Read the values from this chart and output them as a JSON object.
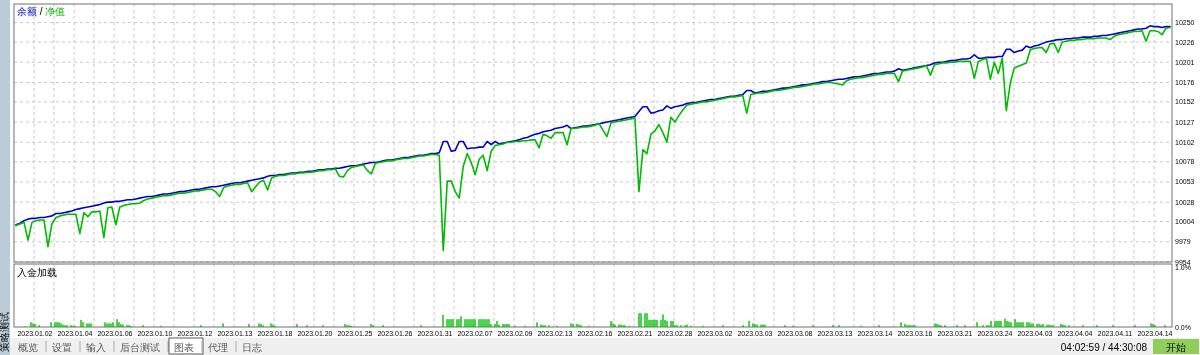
{
  "chart_data": [
    {
      "type": "line",
      "legend": "top left",
      "grid": true,
      "categories": [
        null,
        null,
        null,
        null,
        null,
        null,
        null,
        null,
        null,
        null,
        null,
        null,
        null,
        null,
        null,
        null,
        null,
        null,
        null,
        null,
        null,
        null,
        null,
        null,
        null,
        null,
        null,
        null,
        null,
        null,
        null,
        null,
        null,
        null,
        null,
        null,
        null,
        null,
        null,
        null,
        null,
        null,
        null,
        null,
        null,
        null,
        null,
        null,
        null,
        null,
        null,
        null,
        null,
        null,
        null,
        null,
        null,
        null,
        null,
        null,
        null,
        null,
        null,
        null,
        null,
        null,
        null,
        null,
        null,
        null,
        null,
        null,
        null,
        null,
        null,
        null,
        null,
        null,
        null,
        null,
        null,
        null,
        null,
        null,
        null,
        null,
        null,
        null,
        null,
        null,
        null,
        null,
        null,
        null,
        null,
        null,
        null,
        null,
        null,
        null,
        null,
        null,
        null,
        null,
        null,
        null,
        null,
        null,
        null,
        null,
        null,
        null,
        null,
        null,
        null,
        null,
        null,
        null,
        null,
        null,
        null,
        null,
        null,
        null,
        null,
        null,
        null,
        null,
        null,
        null,
        null,
        null,
        null,
        null,
        null,
        null,
        null,
        null,
        null,
        null,
        null,
        null,
        null,
        null,
        null,
        null,
        null,
        null,
        null,
        null,
        null,
        null,
        null,
        null,
        null,
        null,
        null,
        null,
        null,
        null,
        null,
        null,
        null,
        null,
        null,
        null,
        null,
        null,
        null,
        null,
        null,
        null,
        null,
        null,
        null,
        null,
        null,
        null,
        null,
        null,
        null,
        null,
        null,
        null,
        null,
        null,
        null,
        null,
        null,
        null,
        null,
        null,
        null,
        null,
        null,
        null,
        null,
        null,
        null,
        null,
        null,
        null,
        null,
        null,
        null,
        null,
        null,
        null,
        null,
        null,
        null,
        null,
        null,
        null,
        null,
        null,
        null,
        null,
        null,
        null,
        null,
        null,
        null,
        null,
        null,
        null,
        null,
        null,
        null,
        null,
        null,
        null,
        null,
        null,
        null,
        null,
        null,
        null,
        null,
        null,
        null,
        null,
        null,
        null,
        null,
        null,
        null,
        null,
        null,
        null,
        null,
        null,
        null,
        null,
        null,
        null,
        null,
        null,
        null,
        null,
        null,
        null,
        null,
        null,
        null,
        null,
        null,
        null,
        null,
        null,
        null,
        null,
        null,
        null,
        null,
        null,
        null,
        null,
        null,
        null,
        null,
        null,
        null,
        null,
        null,
        null,
        null,
        null,
        null,
        null
      ],
      "ylim": [
        9954,
        10273
      ],
      "yticks": [
        9954,
        9979,
        10004,
        10028,
        10053,
        10078,
        10102,
        10127,
        10152,
        10176,
        10201,
        10226,
        10250
      ],
      "annotations": [
        "/"
      ],
      "series": [
        {
          "name": "余额",
          "color": "#0000cc",
          "values": [
            10000,
            10002,
            10005,
            10007,
            10008,
            10008,
            10009,
            10009,
            10010,
            10011,
            10014,
            10014,
            10015,
            10016,
            10017,
            10019,
            10020,
            10021,
            10022,
            10023,
            10024,
            10025,
            10027,
            10028,
            10028,
            10029,
            10029,
            10030,
            10031,
            10031,
            10032,
            10033,
            10034,
            10035,
            10035,
            10036,
            10037,
            10038,
            10038,
            10039,
            10040,
            10041,
            10041,
            10042,
            10043,
            10044,
            10044,
            10045,
            10046,
            10047,
            10047,
            10048,
            10049,
            10050,
            10051,
            10052,
            10052,
            10053,
            10054,
            10055,
            10056,
            10057,
            10058,
            10060,
            10061,
            10061,
            10062,
            10062,
            10063,
            10064,
            10064,
            10065,
            10065,
            10066,
            10066,
            10067,
            10068,
            10068,
            10069,
            10069,
            10070,
            10070,
            10071,
            10072,
            10073,
            10073,
            10074,
            10075,
            10076,
            10077,
            10077,
            10078,
            10079,
            10080,
            10080,
            10081,
            10082,
            10083,
            10083,
            10084,
            10085,
            10086,
            10086,
            10087,
            10088,
            10088,
            10089,
            10103,
            10103,
            10091,
            10092,
            10103,
            10103,
            10094,
            10095,
            10095,
            10096,
            10096,
            10103,
            10099,
            10103,
            10100,
            10101,
            10102,
            10103,
            10104,
            10105,
            10107,
            10108,
            10110,
            10112,
            10113,
            10115,
            10116,
            10117,
            10119,
            10120,
            10121,
            10123,
            10119,
            10120,
            10121,
            10122,
            10122,
            10123,
            10124,
            10125,
            10126,
            10127,
            10128,
            10129,
            10130,
            10131,
            10132,
            10133,
            10134,
            10140,
            10146,
            10146,
            10138,
            10139,
            10141,
            10142,
            10147,
            10144,
            10146,
            10147,
            10148,
            10150,
            10151,
            10151,
            10152,
            10153,
            10154,
            10155,
            10155,
            10156,
            10157,
            10158,
            10159,
            10159,
            10160,
            10161,
            10166,
            10166,
            10163,
            10164,
            10165,
            10165,
            10166,
            10167,
            10168,
            10169,
            10169,
            10170,
            10171,
            10172,
            10173,
            10173,
            10174,
            10175,
            10176,
            10177,
            10177,
            10178,
            10179,
            10180,
            10180,
            10181,
            10182,
            10183,
            10183,
            10184,
            10185,
            10186,
            10187,
            10187,
            10188,
            10189,
            10189,
            10190,
            10193,
            10191,
            10192,
            10193,
            10194,
            10195,
            10196,
            10197,
            10198,
            10200,
            10201,
            10201,
            10202,
            10203,
            10203,
            10204,
            10205,
            10205,
            10206,
            10210,
            10206,
            10206,
            10207,
            10207,
            10207,
            10208,
            10208,
            10217,
            10217,
            10213,
            10215,
            10216,
            10221,
            10219,
            10221,
            10222,
            10224,
            10226,
            10227,
            10228,
            10229,
            10229,
            10230,
            10230,
            10231,
            10231,
            10232,
            10232,
            10232,
            10233,
            10233,
            10234,
            10234,
            10235,
            10236,
            10237,
            10238,
            10239,
            10240,
            10241,
            10242,
            10242,
            10243,
            10246,
            10245,
            10245,
            10244,
            10245,
            10245
          ]
        },
        {
          "name": "净值",
          "color": "#00bb00",
          "values": [
            9999,
            10001,
            10003,
            9981,
            10003,
            10005,
            10006,
            10006,
            9973,
            10001,
            10009,
            10011,
            10012,
            10013,
            10013,
            10013,
            9989,
            10015,
            10010,
            10016,
            10016,
            10017,
            9984,
            10021,
            10022,
            10000,
            10022,
            10024,
            10025,
            10026,
            10026,
            10027,
            10030,
            10032,
            10033,
            10034,
            10035,
            10036,
            10036,
            10037,
            10038,
            10039,
            10039,
            10040,
            10041,
            10042,
            10042,
            10043,
            10044,
            10044,
            10041,
            10035,
            10046,
            10048,
            10049,
            10050,
            10050,
            10051,
            10052,
            10041,
            10047,
            10053,
            10055,
            10043,
            10058,
            10060,
            10061,
            10061,
            10062,
            10063,
            10063,
            10064,
            10064,
            10065,
            10065,
            10066,
            10067,
            10067,
            10068,
            10068,
            10069,
            10060,
            10059,
            10067,
            10071,
            10072,
            10073,
            10074,
            10067,
            10063,
            10076,
            10077,
            10078,
            10079,
            10079,
            10080,
            10081,
            10082,
            10082,
            10083,
            10084,
            10085,
            10085,
            10086,
            10087,
            10087,
            10086,
            9968,
            10054,
            10054,
            10041,
            10033,
            10072,
            10088,
            10077,
            10062,
            10081,
            10086,
            10067,
            10091,
            10098,
            10099,
            10100,
            10102,
            10102,
            10103,
            10103,
            10104,
            10104,
            10105,
            10105,
            10095,
            10112,
            10110,
            10107,
            10114,
            10114,
            10114,
            10099,
            10119,
            10119,
            10120,
            10121,
            10121,
            10122,
            10123,
            10125,
            10117,
            10109,
            10126,
            10127,
            10128,
            10129,
            10130,
            10131,
            10132,
            10041,
            10093,
            10088,
            10112,
            10116,
            10124,
            10114,
            10102,
            10133,
            10127,
            10135,
            10142,
            10148,
            10149,
            10150,
            10151,
            10152,
            10152,
            10153,
            10154,
            10155,
            10156,
            10157,
            10158,
            10158,
            10159,
            10160,
            10138,
            10161,
            10162,
            10163,
            10163,
            10164,
            10165,
            10166,
            10166,
            10167,
            10168,
            10169,
            10170,
            10170,
            10171,
            10172,
            10173,
            10174,
            10174,
            10175,
            10176,
            10176,
            10175,
            10174,
            10173,
            10178,
            10180,
            10181,
            10182,
            10182,
            10183,
            10184,
            10185,
            10186,
            10186,
            10187,
            10187,
            10187,
            10177,
            10190,
            10191,
            10192,
            10193,
            10194,
            10195,
            10197,
            10185,
            10198,
            10199,
            10200,
            10200,
            10201,
            10201,
            10202,
            10202,
            10202,
            10202,
            10181,
            10202,
            10204,
            10206,
            10180,
            10201,
            10187,
            10206,
            10141,
            10175,
            10194,
            10196,
            10198,
            10200,
            10216,
            10218,
            10219,
            10219,
            10213,
            10224,
            10224,
            10213,
            10226,
            10227,
            10228,
            10228,
            10229,
            10229,
            10230,
            10230,
            10230,
            10231,
            10231,
            10231,
            10229,
            10233,
            10235,
            10236,
            10237,
            10238,
            10239,
            10239,
            10240,
            10227,
            10240,
            10240,
            10239,
            10235,
            10243,
            10244
          ]
        }
      ]
    },
    {
      "type": "bar",
      "title": "入金加载",
      "grid": "x",
      "color": "#00c000",
      "categories": [
        null,
        null,
        null,
        null,
        null,
        null,
        null,
        null,
        null,
        null,
        "2023.01.02",
        null,
        null,
        null,
        null,
        null,
        null,
        null,
        null,
        null,
        null,
        null,
        null,
        null,
        null,
        null,
        null,
        null,
        null,
        null,
        "2023.01.04",
        null,
        null,
        null,
        null,
        null,
        null,
        null,
        null,
        null,
        null,
        null,
        null,
        null,
        null,
        null,
        null,
        null,
        null,
        null,
        "2023.01.06",
        null,
        null,
        null,
        null,
        null,
        null,
        null,
        null,
        null,
        null,
        null,
        null,
        null,
        null,
        null,
        null,
        null,
        null,
        null,
        "2023.01.10",
        null,
        null,
        null,
        null,
        null,
        null,
        null,
        null,
        null,
        null,
        null,
        null,
        null,
        null,
        null,
        null,
        null,
        null,
        null,
        "2023.01.12",
        null,
        null,
        null,
        null,
        null,
        null,
        null,
        null,
        null,
        null,
        null,
        null,
        null,
        null,
        null,
        null,
        null,
        null,
        null,
        "2023.01.13",
        null,
        null,
        null,
        null,
        null,
        null,
        null,
        null,
        null,
        null,
        null,
        null,
        null,
        null,
        null,
        null,
        null,
        null,
        null,
        "2023.01.18",
        null,
        null,
        null,
        null,
        null,
        null,
        null,
        null,
        null,
        null,
        null,
        null,
        null,
        null,
        null,
        null,
        null,
        null,
        null,
        "2023.01.20",
        null,
        null,
        null,
        null,
        null,
        null,
        null,
        null,
        null,
        null,
        null,
        null,
        null,
        null,
        null,
        null,
        null,
        null,
        null,
        "2023.01.25",
        null,
        null,
        null,
        null,
        null,
        null,
        null,
        null,
        null,
        null,
        null,
        null,
        null,
        null,
        null,
        null,
        null,
        null,
        null,
        "2023.01.26",
        null,
        null,
        null,
        null,
        null,
        null,
        null,
        null,
        null,
        null,
        null,
        null,
        null,
        null,
        null,
        null,
        null,
        null,
        null,
        "2023.01.31",
        null,
        null,
        null,
        null,
        null,
        null,
        null,
        null,
        null,
        null,
        null,
        null,
        null,
        null,
        null,
        null,
        null,
        null,
        null,
        "2023.02.07",
        null,
        null,
        null,
        null,
        null,
        null,
        null,
        null,
        null,
        null,
        null,
        null,
        null,
        null,
        null,
        null,
        null,
        null,
        null,
        "2023.02.09",
        null,
        null,
        null,
        null,
        null,
        null,
        null,
        null,
        null,
        null,
        null,
        null,
        null,
        null,
        null,
        null,
        null,
        null,
        null,
        "2023.02.13",
        null,
        null,
        null,
        null,
        null,
        null,
        null,
        null,
        null,
        null,
        null,
        null,
        null,
        null,
        null,
        null,
        null,
        null,
        null,
        "2023.02.16",
        null,
        null,
        null,
        null,
        null,
        null,
        null,
        null,
        null,
        null,
        null,
        null,
        null,
        null,
        null,
        null,
        null,
        null,
        null,
        "2023.02.21",
        null,
        null,
        null,
        null,
        null,
        null,
        null,
        null,
        null,
        null,
        null,
        null,
        null,
        null,
        null,
        null,
        null,
        null,
        null,
        "2023.02.28",
        null,
        null,
        null,
        null,
        null,
        null,
        null,
        null,
        null,
        null,
        null,
        null,
        null,
        null,
        null,
        null,
        null,
        null,
        null,
        "2023.03.02",
        null,
        null,
        null,
        null,
        null,
        null,
        null,
        null,
        null,
        null,
        null,
        null,
        null,
        null,
        null,
        null,
        null,
        null,
        null,
        "2023.03.03",
        null,
        null,
        null,
        null,
        null,
        null,
        null,
        null,
        null,
        null,
        null,
        null,
        null,
        null,
        null,
        null,
        null,
        null,
        null,
        "2023.03.08",
        null,
        null,
        null,
        null,
        null,
        null,
        null,
        null,
        null,
        null,
        null,
        null,
        null,
        null,
        null,
        null,
        null,
        null,
        null,
        "2023.03.13",
        null,
        null,
        null,
        null,
        null,
        null,
        null,
        null,
        null,
        null,
        null,
        null,
        null,
        null,
        null,
        null,
        null,
        null,
        null,
        "2023.03.14",
        null,
        null,
        null,
        null,
        null,
        null,
        null,
        null,
        null,
        null,
        null,
        null,
        null,
        null,
        null,
        null,
        null,
        null,
        null,
        "2023.03.16",
        null,
        null,
        null,
        null,
        null,
        null,
        null,
        null,
        null,
        null,
        null,
        null,
        null,
        null,
        null,
        null,
        null,
        null,
        null,
        "2023.03.21",
        null,
        null,
        null,
        null,
        null,
        null,
        null,
        null,
        null,
        null,
        null,
        null,
        null,
        null,
        null,
        null,
        null,
        null,
        null,
        "2023.03.24",
        null,
        null,
        null,
        null,
        null,
        null,
        null,
        null,
        null,
        null,
        null,
        null,
        null,
        null,
        null,
        null,
        null,
        null,
        null,
        "2023.04.03",
        null,
        null,
        null,
        null,
        null,
        null,
        null,
        null,
        null,
        null,
        null,
        null,
        null,
        null,
        null,
        null,
        null,
        null,
        null,
        "2023.04.04",
        null,
        null,
        null,
        null,
        null,
        null,
        null,
        null,
        null,
        null,
        null,
        null,
        null,
        null,
        null,
        null,
        null,
        null,
        null,
        "2023.04.11",
        null,
        null,
        null,
        null,
        null,
        null,
        null,
        null,
        null,
        null,
        null,
        null,
        null,
        null,
        null,
        null,
        null,
        null,
        null,
        "2023.04.14",
        null,
        null,
        null,
        null,
        null,
        null,
        null,
        null
      ],
      "ylim": [
        0,
        1.05
      ],
      "yticks": [
        {
          "value": 0,
          "label": "0.0%"
        },
        {
          "value": 1,
          "label": "1.0%"
        }
      ],
      "values": [
        null,
        null,
        null,
        null,
        null,
        0.01,
        null,
        null,
        0.08,
        0.06,
        0.05,
        null,
        0.03,
        null,
        null,
        null,
        null,
        null,
        0.08,
        null,
        0.08,
        0.08,
        0.08,
        0.06,
        0.04,
        0.03,
        0.03,
        null,
        0.03,
        0.02,
        0.02,
        null,
        null,
        0.12,
        0.08,
        null,
        0.06,
        0.06,
        0.06,
        null,
        null,
        null,
        null,
        null,
        null,
        0.08,
        0.06,
        0.06,
        0.06,
        0.08,
        null,
        0.13,
        0.08,
        0.05,
        0.04,
        null,
        0.03,
        0.03,
        0.02,
        null,
        null,
        null,
        null,
        null,
        0.03,
        null,
        null,
        null,
        null,
        null,
        null,
        null,
        null,
        0.02,
        null,
        null,
        null,
        null,
        null,
        null,
        null,
        null,
        null,
        null,
        null,
        null,
        null,
        null,
        null,
        null,
        null,
        null,
        null,
        0.03,
        null,
        null,
        null,
        null,
        null,
        null,
        null,
        null,
        null,
        null,
        0.06,
        null,
        null,
        null,
        null,
        null,
        null,
        null,
        null,
        null,
        null,
        null,
        null,
        0.05,
        null,
        null,
        null,
        null,
        0.06,
        0.05,
        0.03,
        null,
        null,
        null,
        0.06,
        0.04,
        0.02,
        null,
        null,
        null,
        null,
        null,
        null,
        null,
        null,
        null,
        null,
        0.05,
        null,
        null,
        null,
        null,
        0.03,
        null,
        null,
        null,
        null,
        null,
        null,
        null,
        0.03,
        null,
        null,
        null,
        null,
        null,
        null,
        null,
        null,
        null,
        null,
        0.05,
        0.03,
        0.03,
        0.02,
        null,
        null,
        null,
        null,
        null,
        null,
        null,
        null,
        null,
        0.05,
        0.03,
        null,
        null,
        null,
        null,
        0.03,
        null,
        null,
        null,
        null,
        null,
        null,
        null,
        null,
        null,
        null,
        null,
        null,
        null,
        null,
        null,
        null,
        null,
        null,
        0.03,
        null,
        null,
        null,
        null,
        null,
        null,
        null,
        null,
        null,
        null,
        0.2,
        null,
        0.13,
        0.13,
        0.13,
        0.13,
        null,
        0.13,
        0.13,
        0.18,
        null,
        0.13,
        0.13,
        0.13,
        0.13,
        0.13,
        0.13,
        null,
        0.13,
        0.13,
        0.13,
        0.13,
        0.13,
        0.13,
        0.05,
        null,
        0.05,
        0.1,
        0.04,
        null,
        0.05,
        0.05,
        0.05,
        0.05,
        null,
        null,
        0.02,
        null,
        null,
        null,
        null,
        0.02,
        null,
        null,
        null,
        null,
        null,
        0.08,
        null,
        0.04,
        0.03,
        0.03,
        null,
        0.03,
        null,
        null,
        null,
        0.02,
        null,
        null,
        null,
        null,
        null,
        null,
        0.06,
        0.05,
        null,
        0.05,
        0.04,
        0.03,
        null,
        null,
        null,
        0.02,
        null,
        null,
        null,
        null,
        null,
        null,
        null,
        null,
        null,
        null,
        0.1,
        0.06,
        0.04,
        null,
        0.04,
        0.04,
        0.03,
        0.03,
        null,
        0.02,
        null,
        null,
        null,
        null,
        0.23,
        0.23,
        null,
        0.23,
        0.23,
        0.12,
        0.12,
        0.12,
        0.12,
        0.12,
        null,
        0.12,
        0.21,
        0.12,
        0.1,
        null,
        0.1,
        0.1,
        0.03,
        0.03,
        null,
        0.03,
        null,
        0.03,
        0.04,
        null,
        0.02,
        null,
        null,
        null,
        null,
        null,
        0.02,
        null,
        null,
        null,
        null,
        null,
        null,
        null,
        null,
        null,
        0.03,
        null,
        null,
        null,
        null,
        null,
        null,
        null,
        null,
        null,
        0.03,
        null,
        null,
        0.1,
        null,
        0.06,
        0.05,
        0.04,
        null,
        0.04,
        0.04,
        0.04,
        null,
        null,
        null,
        null,
        null,
        null,
        null,
        null,
        null,
        0.03,
        null,
        null,
        null,
        0.02,
        null,
        null,
        null,
        null,
        null,
        null,
        null,
        null,
        null,
        0.03,
        null,
        null,
        null,
        null,
        null,
        null,
        null,
        null,
        null,
        0.03,
        null,
        null,
        0.03,
        null,
        null,
        null,
        null,
        null,
        null,
        null,
        null,
        null,
        null,
        0.02,
        null,
        null,
        null,
        null,
        null,
        null,
        null,
        null,
        0.03,
        null,
        null,
        null,
        null,
        null,
        null,
        null,
        null,
        null,
        null,
        0.08,
        null,
        0.05,
        0.03,
        0.03,
        0.03,
        0.03,
        0.03,
        null,
        null,
        null,
        null,
        null,
        null,
        null,
        null,
        null,
        0.06,
        0.05,
        0.04,
        0.03,
        null,
        0.03,
        null,
        null,
        null,
        null,
        null,
        0.03,
        null,
        null,
        null,
        0.03,
        null,
        null,
        null,
        null,
        null,
        0.08,
        null,
        null,
        0.03,
        null,
        0.03,
        0.03,
        0.1,
        null,
        0.1,
        0.1,
        0.1,
        0.1,
        null,
        0.14,
        0.1,
        0.09,
        0.08,
        null,
        0.13,
        0.08,
        0.08,
        0.08,
        0.08,
        null,
        0.08,
        0.08,
        0.06,
        0.06,
        null,
        0.05,
        0.05,
        0.04,
        0.05,
        null,
        0.04,
        0.04,
        0.03,
        0.03,
        null,
        null,
        null,
        0.05,
        0.04,
        0.03,
        null,
        0.03,
        null,
        null,
        null,
        null,
        null,
        null,
        0.03,
        null,
        null,
        null,
        null,
        null,
        null,
        0.03,
        null,
        null,
        null,
        null,
        null,
        null,
        null,
        0.03,
        null,
        null,
        null,
        null,
        null,
        null,
        null,
        null,
        null,
        null,
        0.03,
        null,
        null,
        null,
        null,
        null,
        null,
        null,
        0.06,
        0.05,
        0.03,
        null,
        null,
        null,
        null,
        0.03,
        null,
        null,
        null
      ],
      "annotations": [
        "概览",
        "设置",
        "输入",
        "后台测试",
        "图表",
        "代理",
        "日志",
        "04:02:59 / 44:30:08",
        "开始",
        "策略测试"
      ]
    }
  ]
}
